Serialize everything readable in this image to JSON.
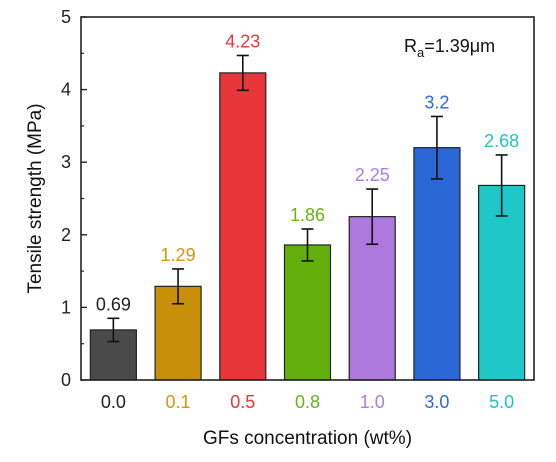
{
  "chart_data": {
    "type": "bar",
    "title": "",
    "xlabel": "GFs concentration (wt%)",
    "ylabel": "Tensile strength (MPa)",
    "ylim": [
      0,
      5
    ],
    "yticks": [
      "0",
      "1",
      "2",
      "3",
      "4",
      "5"
    ],
    "categories": [
      "0.0",
      "0.1",
      "0.5",
      "0.8",
      "1.0",
      "3.0",
      "5.0"
    ],
    "values": [
      0.69,
      1.29,
      4.23,
      1.86,
      2.25,
      3.2,
      2.68
    ],
    "value_labels": [
      "0.69",
      "1.29",
      "4.23",
      "1.86",
      "2.25",
      "3.2",
      "2.68"
    ],
    "errors": [
      0.16,
      0.24,
      0.24,
      0.22,
      0.38,
      0.43,
      0.42
    ],
    "colors": [
      "#4a4a4a",
      "#c8900a",
      "#e8373a",
      "#63b00c",
      "#ad79dc",
      "#2c67d6",
      "#1ec8c8"
    ],
    "label_colors": [
      "#222222",
      "#d4960c",
      "#e8373a",
      "#6ab214",
      "#b07ee0",
      "#2d6ad8",
      "#22c2c2"
    ],
    "annotation": {
      "prefix": "R",
      "subscript": "a",
      "suffix": "=1.39μm"
    }
  }
}
